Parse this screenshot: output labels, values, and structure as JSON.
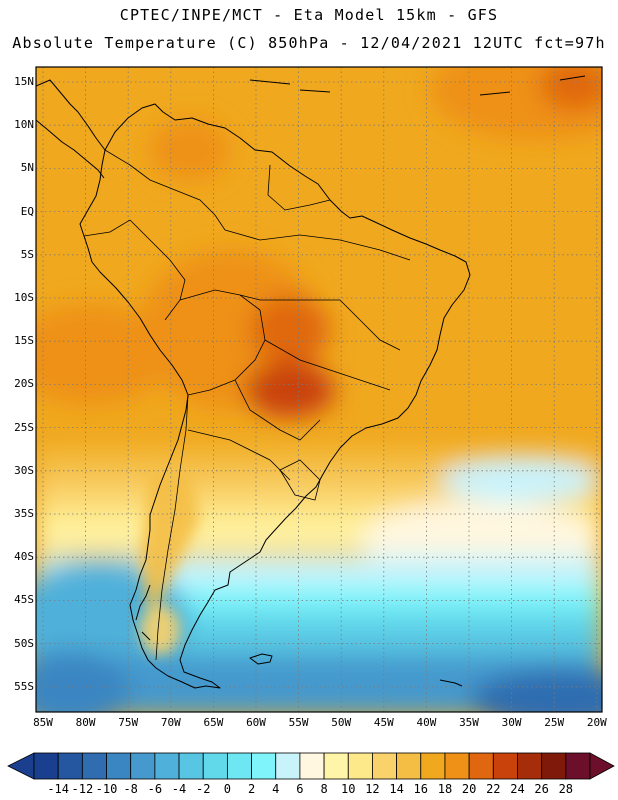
{
  "header": {
    "line1": "CPTEC/INPE/MCT -  Eta Model 15km - GFS",
    "line2": "Absolute Temperature (C) 850hPa - 12/04/2021 12UTC fct=97h"
  },
  "map": {
    "lat_labels": [
      "15N",
      "10N",
      "5N",
      "EQ",
      "5S",
      "10S",
      "15S",
      "20S",
      "25S",
      "30S",
      "35S",
      "40S",
      "45S",
      "50S",
      "55S"
    ],
    "lon_labels": [
      "85W",
      "80W",
      "75W",
      "70W",
      "65W",
      "60W",
      "55W",
      "50W",
      "45W",
      "40W",
      "35W",
      "30W",
      "25W",
      "20W"
    ]
  },
  "colorbar": {
    "labels": [
      "-14",
      "-12",
      "-10",
      "-8",
      "-6",
      "-4",
      "-2",
      "0",
      "2",
      "4",
      "6",
      "8",
      "10",
      "12",
      "14",
      "16",
      "18",
      "20",
      "22",
      "24",
      "26",
      "28"
    ],
    "colors": [
      "#1b3f8f",
      "#2556a0",
      "#2f6db0",
      "#3a86c2",
      "#4599cd",
      "#4fb0d9",
      "#58c6e2",
      "#62d8eb",
      "#6fe7f2",
      "#7ff5fb",
      "#c9f3fb",
      "#fff7df",
      "#fff5a8",
      "#fde88a",
      "#fad26b",
      "#f4be44",
      "#f0a81e",
      "#ee9116",
      "#e0670f",
      "#c9420b",
      "#a62d0a",
      "#7f1a0a",
      "#6b0f2a"
    ]
  }
}
